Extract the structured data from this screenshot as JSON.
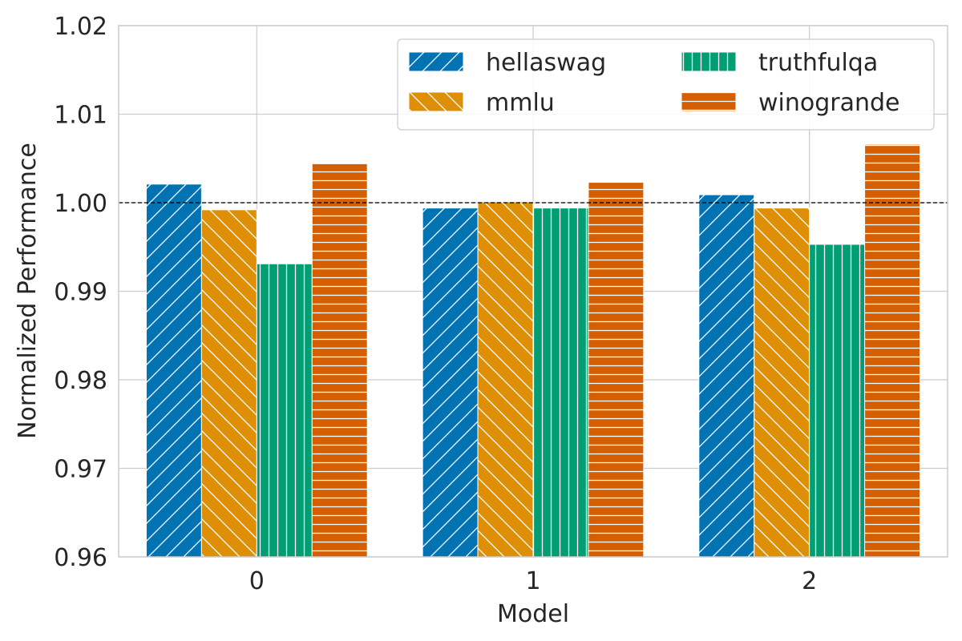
{
  "chart_data": {
    "type": "bar",
    "title": "",
    "xlabel": "Model",
    "ylabel": "Normalized Performance",
    "categories": [
      "0",
      "1",
      "2"
    ],
    "ylim": [
      0.96,
      1.02
    ],
    "yticks": [
      "0.96",
      "0.97",
      "0.98",
      "0.99",
      "1.00",
      "1.01",
      "1.02"
    ],
    "reference_line": 1.0,
    "grid": true,
    "legend": {
      "placement": "top-right",
      "columns": 2
    },
    "series": [
      {
        "name": "hellaswag",
        "values": [
          1.0021,
          0.9994,
          1.0009
        ],
        "color": "#0173b2",
        "hatch": "diagonal-forward"
      },
      {
        "name": "mmlu",
        "values": [
          0.9992,
          1.0001,
          0.9994
        ],
        "color": "#de8f05",
        "hatch": "diagonal-back"
      },
      {
        "name": "truthfulqa",
        "values": [
          0.9931,
          0.9994,
          0.9953
        ],
        "color": "#029e73",
        "hatch": "vertical"
      },
      {
        "name": "winogrande",
        "values": [
          1.0044,
          1.0023,
          1.0066
        ],
        "color": "#d55e00",
        "hatch": "horizontal"
      }
    ]
  }
}
